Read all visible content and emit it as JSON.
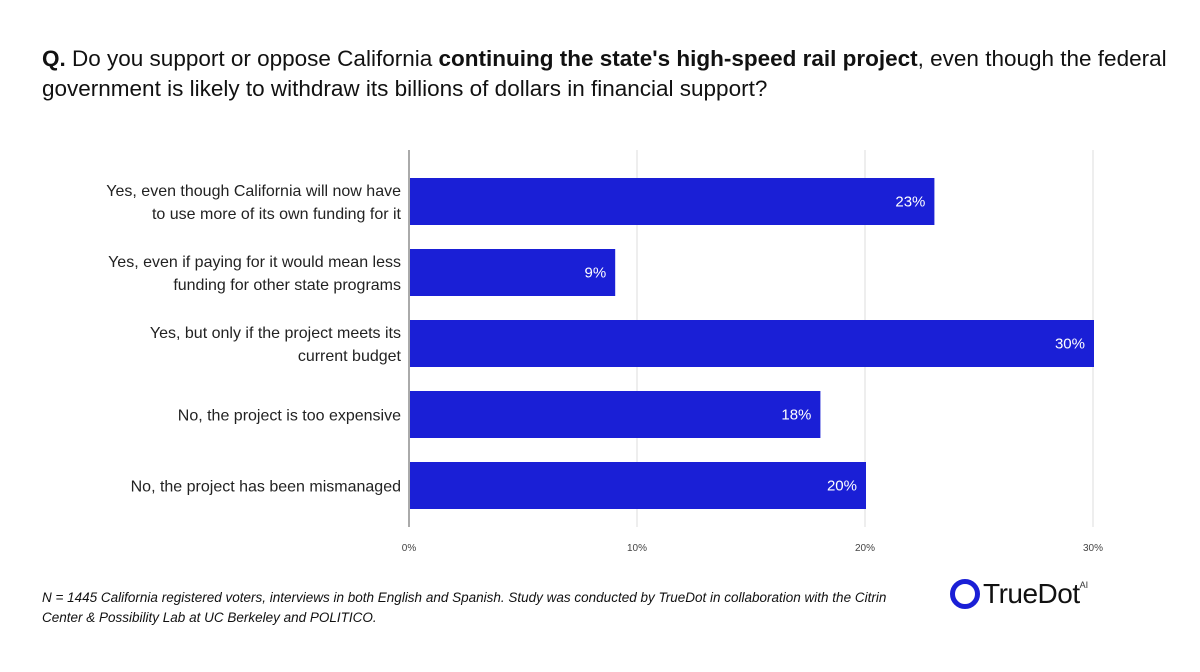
{
  "title": {
    "prefix": "Q.",
    "part1": " Do you support or oppose California ",
    "bold": "continuing the state's high-speed rail project",
    "part2": ", even though the federal government is likely to withdraw its billions of dollars in financial support?"
  },
  "chart_data": {
    "type": "bar",
    "orientation": "horizontal",
    "categories": [
      [
        "Yes, even though California will now have",
        "to use more of its own funding for it"
      ],
      [
        "Yes, even if paying for it would mean less",
        "funding for other state programs"
      ],
      [
        "Yes, but only if the project meets its",
        "current budget"
      ],
      [
        "No, the project is too expensive"
      ],
      [
        "No, the project has been mismanaged"
      ]
    ],
    "values": [
      23,
      9,
      30,
      18,
      20
    ],
    "data_labels": [
      "23%",
      "9%",
      "30%",
      "18%",
      "20%"
    ],
    "xlim": [
      0,
      31.5
    ],
    "ticks": [
      0,
      10,
      20,
      30
    ],
    "tick_labels": [
      "0%",
      "10%",
      "20%",
      "30%"
    ],
    "grid": true,
    "bar_color": "#1a1fd6"
  },
  "footer": {
    "note": "N = 1445 California registered voters, interviews in both English and Spanish. Study was conducted by TrueDot in collaboration with the Citrin Center & Possibility Lab at UC Berkeley and POLITICO.",
    "logo_text": "TrueDot",
    "logo_sup": "AI"
  }
}
